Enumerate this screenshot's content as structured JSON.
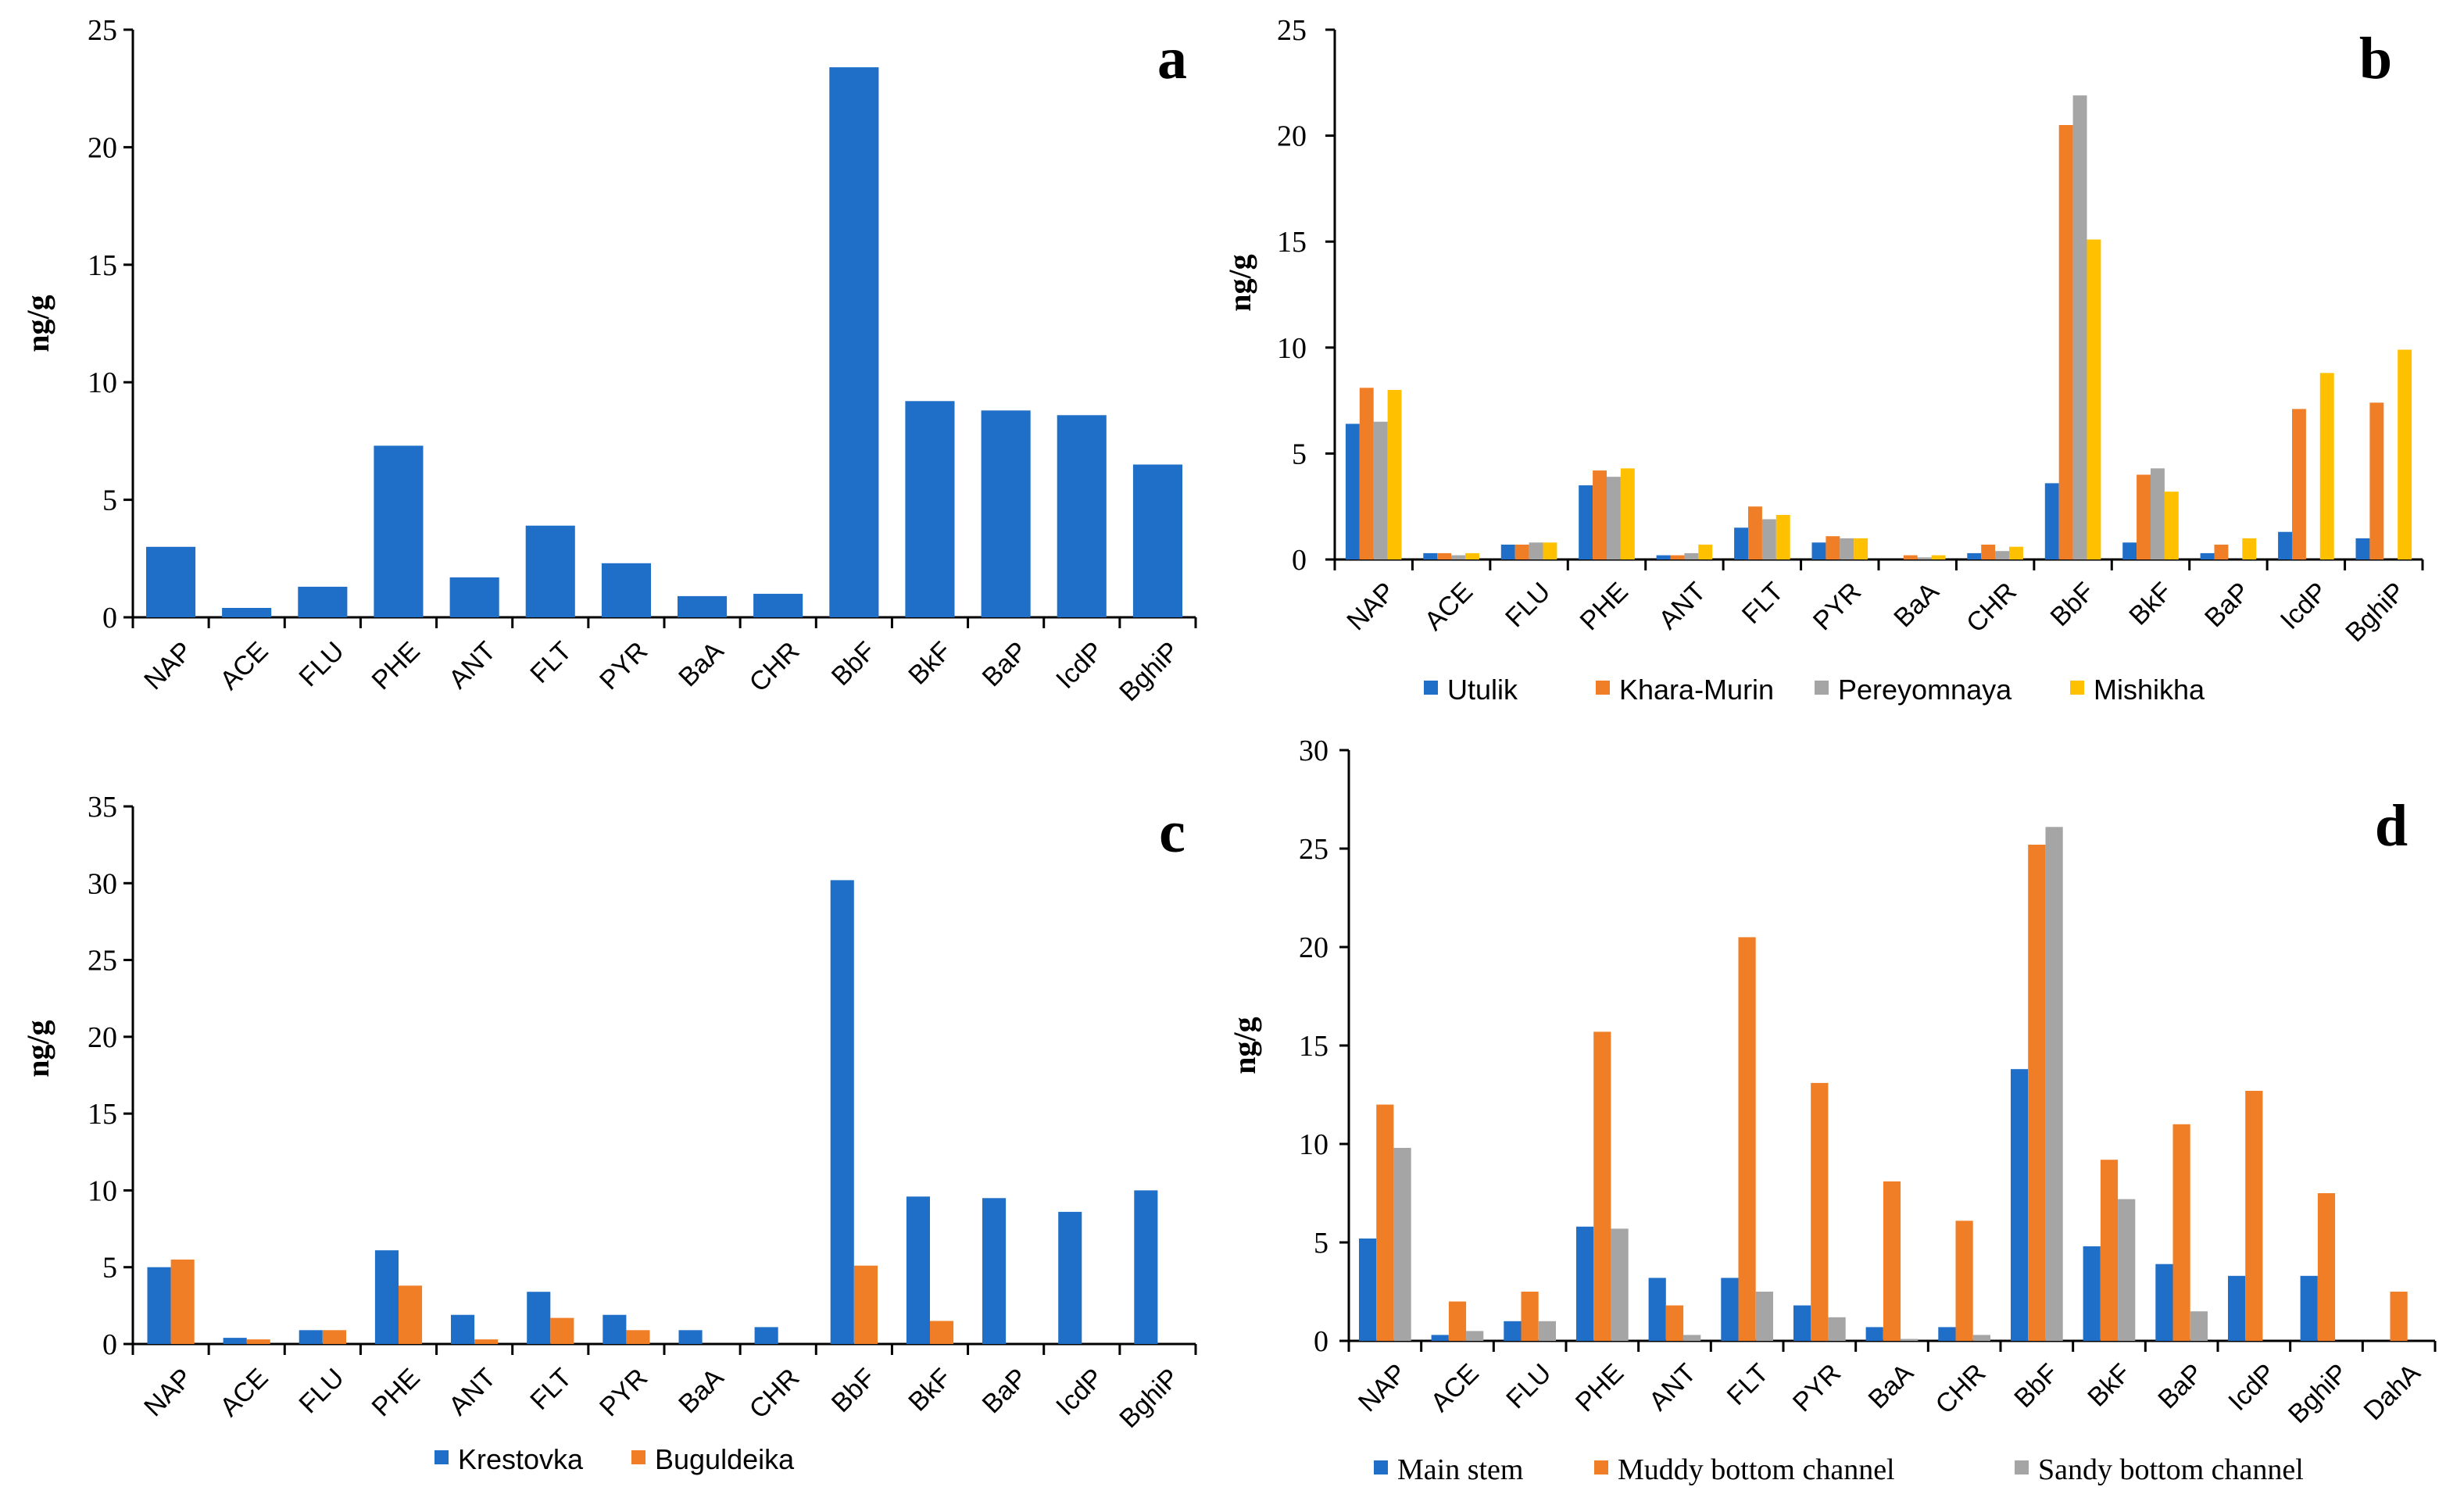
{
  "chart_data": [
    {
      "panel": "a",
      "type": "bar",
      "title": "",
      "xlabel": "",
      "ylabel": "ng/g",
      "ylim": [
        0,
        25
      ],
      "yticks": [
        0,
        5,
        10,
        15,
        20,
        25
      ],
      "categories": [
        "NAP",
        "ACE",
        "FLU",
        "PHE",
        "ANT",
        "FLT",
        "PYR",
        "BaA",
        "CHR",
        "BbF",
        "BkF",
        "BaP",
        "IcdP",
        "BghiP"
      ],
      "series": [
        {
          "name": "",
          "color": "#1F6FC8",
          "values": [
            3.0,
            0.4,
            1.3,
            7.3,
            1.7,
            3.9,
            2.3,
            0.9,
            1.0,
            23.4,
            9.2,
            8.8,
            8.6,
            6.5
          ]
        }
      ],
      "legend": []
    },
    {
      "panel": "b",
      "type": "bar",
      "title": "",
      "xlabel": "",
      "ylabel": "ng/g",
      "ylim": [
        0,
        25
      ],
      "yticks": [
        0,
        5,
        10,
        15,
        20,
        25
      ],
      "categories": [
        "NAP",
        "ACE",
        "FLU",
        "PHE",
        "ANT",
        "FLT",
        "PYR",
        "BaA",
        "CHR",
        "BbF",
        "BkF",
        "BaP",
        "IcdP",
        "BghiP"
      ],
      "series": [
        {
          "name": "Utulik",
          "color": "#1F6FC8",
          "values": [
            6.4,
            0.3,
            0.7,
            3.5,
            0.2,
            1.5,
            0.8,
            0.0,
            0.3,
            3.6,
            0.8,
            0.3,
            1.3,
            1.0
          ]
        },
        {
          "name": "Khara-Murin",
          "color": "#F07E26",
          "values": [
            8.1,
            0.3,
            0.7,
            4.2,
            0.2,
            2.5,
            1.1,
            0.2,
            0.7,
            20.5,
            4.0,
            0.7,
            7.1,
            7.4
          ]
        },
        {
          "name": "Pereyomnaya",
          "color": "#A5A5A5",
          "values": [
            6.5,
            0.2,
            0.8,
            3.9,
            0.3,
            1.9,
            1.0,
            0.1,
            0.4,
            21.9,
            4.3,
            0.0,
            0.0,
            0.0
          ]
        },
        {
          "name": "Mishikha",
          "color": "#FFC000",
          "values": [
            8.0,
            0.3,
            0.8,
            4.3,
            0.7,
            2.1,
            1.0,
            0.2,
            0.6,
            15.1,
            3.2,
            1.0,
            8.8,
            9.9
          ]
        }
      ],
      "legend": [
        "Utulik",
        "Khara-Murin",
        "Pereyomnaya",
        "Mishikha"
      ]
    },
    {
      "panel": "c",
      "type": "bar",
      "title": "",
      "xlabel": "",
      "ylabel": "ng/g",
      "ylim": [
        0,
        35
      ],
      "yticks": [
        0,
        5,
        10,
        15,
        20,
        25,
        30,
        35
      ],
      "categories": [
        "NAP",
        "ACE",
        "FLU",
        "PHE",
        "ANT",
        "FLT",
        "PYR",
        "BaA",
        "CHR",
        "BbF",
        "BkF",
        "BaP",
        "IcdP",
        "BghiP"
      ],
      "series": [
        {
          "name": "Krestovka",
          "color": "#1F6FC8",
          "values": [
            5.0,
            0.4,
            0.9,
            6.1,
            1.9,
            3.4,
            1.9,
            0.9,
            1.1,
            30.2,
            9.6,
            9.5,
            8.6,
            10.0
          ]
        },
        {
          "name": "Buguldeika",
          "color": "#F07E26",
          "values": [
            5.5,
            0.3,
            0.9,
            3.8,
            0.3,
            1.7,
            0.9,
            0.0,
            0.0,
            5.1,
            1.5,
            0.0,
            0.0,
            0.0
          ]
        }
      ],
      "legend": [
        "Krestovka",
        "Buguldeika"
      ]
    },
    {
      "panel": "d",
      "type": "bar",
      "title": "",
      "xlabel": "",
      "ylabel": "ng/g",
      "ylim": [
        0,
        30
      ],
      "yticks": [
        0,
        5,
        10,
        15,
        20,
        25,
        30
      ],
      "categories": [
        "NAP",
        "ACE",
        "FLU",
        "PHE",
        "ANT",
        "FLT",
        "PYR",
        "BaA",
        "CHR",
        "BbF",
        "BkF",
        "BaP",
        "IcdP",
        "BghiP",
        "DahA"
      ],
      "series": [
        {
          "name": "Main stem",
          "color": "#1F6FC8",
          "values": [
            5.2,
            0.3,
            1.0,
            5.8,
            3.2,
            3.2,
            1.8,
            0.7,
            0.7,
            13.8,
            4.8,
            3.9,
            3.3,
            3.3,
            0.0
          ]
        },
        {
          "name": "Muddy bottom channel",
          "color": "#F07E26",
          "values": [
            12.0,
            2.0,
            2.5,
            15.7,
            1.8,
            20.5,
            13.1,
            8.1,
            6.1,
            25.2,
            9.2,
            11.0,
            12.7,
            7.5,
            2.5
          ]
        },
        {
          "name": "Sandy bottom channel",
          "color": "#A5A5A5",
          "values": [
            9.8,
            0.5,
            1.0,
            5.7,
            0.3,
            2.5,
            1.2,
            0.1,
            0.3,
            26.1,
            7.2,
            1.5,
            0.0,
            0.0,
            0.0
          ]
        }
      ],
      "legend": [
        "Main stem",
        "Muddy bottom channel",
        "Sandy bottom channel"
      ]
    }
  ]
}
